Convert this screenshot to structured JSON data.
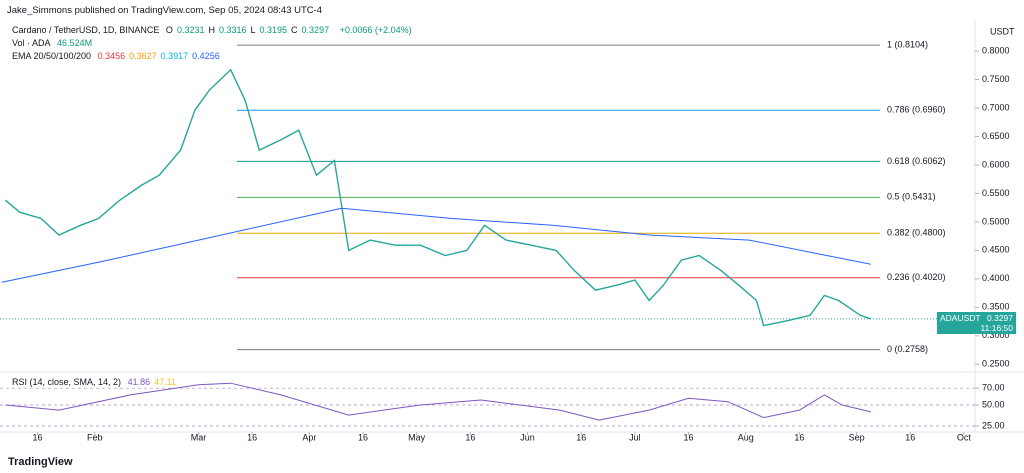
{
  "header": {
    "publisher": "Jake_Simmons published on TradingView.com, Sep 05, 2024 08:43 UTC-4",
    "symbol": "Cardano / TetherUSD, 1D, BINANCE",
    "ohlc": [
      {
        "key": "O",
        "value": "0.3231"
      },
      {
        "key": "H",
        "value": "0.3316"
      },
      {
        "key": "L",
        "value": "0.3195"
      },
      {
        "key": "C",
        "value": "0.3297"
      }
    ],
    "change": "+0.0066 (+2.04%)",
    "volume_label": "Vol · ADA",
    "volume_value": "46.524M",
    "ema_label": "EMA 20/50/100/200",
    "ema_values": [
      {
        "value": "0.3456",
        "color": "#f23645"
      },
      {
        "value": "0.3627",
        "color": "#ff9800"
      },
      {
        "value": "0.3917",
        "color": "#00bcd4"
      },
      {
        "value": "0.4256",
        "color": "#2962ff"
      }
    ],
    "axis_unit": "USDT",
    "countdown": "11:16:50",
    "brand": "TradingView"
  },
  "chart_data": [
    {
      "type": "line",
      "xlim": [
        5.5,
        278.1
      ],
      "ylim": [
        0.24,
        0.8193
      ],
      "yticks": [
        {
          "value": 0.25,
          "label": "0.2500"
        },
        {
          "value": 0.3,
          "label": "0.3000"
        },
        {
          "value": 0.35,
          "label": "0.3500"
        },
        {
          "value": 0.4,
          "label": "0.4000"
        },
        {
          "value": 0.45,
          "label": "0.4500"
        },
        {
          "value": 0.5,
          "label": "0.5000"
        },
        {
          "value": 0.55,
          "label": "0.5500"
        },
        {
          "value": 0.6,
          "label": "0.6000"
        },
        {
          "value": 0.65,
          "label": "0.6500"
        },
        {
          "value": 0.7,
          "label": "0.7000"
        },
        {
          "value": 0.75,
          "label": "0.7500"
        },
        {
          "value": 0.8,
          "label": "0.8000"
        }
      ],
      "xticks": [
        {
          "value": 16,
          "label": "16"
        },
        {
          "value": 32,
          "label": "Feb"
        },
        {
          "value": 61,
          "label": "Mar"
        },
        {
          "value": 76,
          "label": "16"
        },
        {
          "value": 92,
          "label": "Apr"
        },
        {
          "value": 107,
          "label": "16"
        },
        {
          "value": 122,
          "label": "May"
        },
        {
          "value": 137,
          "label": "16"
        },
        {
          "value": 153,
          "label": "Jun"
        },
        {
          "value": 168,
          "label": "16"
        },
        {
          "value": 183,
          "label": "Jul"
        },
        {
          "value": 198,
          "label": "16"
        },
        {
          "value": 214,
          "label": "Aug"
        },
        {
          "value": 229,
          "label": "16"
        },
        {
          "value": 245,
          "label": "Sep"
        },
        {
          "value": 260,
          "label": "16"
        },
        {
          "value": 275,
          "label": "Oct"
        }
      ],
      "series": [
        {
          "name": "ADAUSDT",
          "color": "#26a69a",
          "x": [
            7,
            11,
            17,
            22,
            28,
            33,
            39,
            45,
            50,
            56,
            60,
            64,
            70,
            74,
            78,
            84,
            89,
            94,
            99,
            103,
            109,
            116,
            123,
            130,
            136,
            141,
            147,
            154,
            161,
            166,
            172,
            178,
            183,
            187,
            191,
            196,
            201,
            207,
            212,
            217,
            219,
            226,
            232,
            236,
            240,
            246,
            249
          ],
          "values": [
            0.538,
            0.517,
            0.506,
            0.477,
            0.494,
            0.506,
            0.538,
            0.564,
            0.582,
            0.626,
            0.696,
            0.731,
            0.767,
            0.714,
            0.626,
            0.644,
            0.661,
            0.582,
            0.608,
            0.45,
            0.468,
            0.459,
            0.459,
            0.441,
            0.45,
            0.494,
            0.468,
            0.459,
            0.45,
            0.415,
            0.38,
            0.389,
            0.398,
            0.362,
            0.389,
            0.433,
            0.441,
            0.415,
            0.389,
            0.362,
            0.318,
            0.327,
            0.336,
            0.371,
            0.362,
            0.336,
            0.3297
          ]
        },
        {
          "color": "#2962ff",
          "x": [
            6,
            33,
            61,
            101,
            132,
            160,
            187,
            215,
            249
          ],
          "values": [
            0.394,
            0.429,
            0.468,
            0.524,
            0.506,
            0.494,
            0.477,
            0.468,
            0.4256
          ]
        }
      ],
      "levels": [
        {
          "value": 0.8104,
          "label": "1 (0.8104)",
          "color": "#787b86"
        },
        {
          "value": 0.696,
          "label": "0.786 (0.6960)",
          "color": "#2196f3"
        },
        {
          "value": 0.6062,
          "label": "0.618 (0.6062)",
          "color": "#089981"
        },
        {
          "value": 0.5431,
          "label": "0.5 (0.5431)",
          "color": "#4caf50"
        },
        {
          "value": 0.48,
          "label": "0.382 (0.4800)",
          "color": "#e0a800"
        },
        {
          "value": 0.402,
          "label": "0.236 (0.4020)",
          "color": "#f23645"
        },
        {
          "value": 0.2758,
          "label": "0 (0.2758)",
          "color": "#787b86"
        }
      ]
    },
    {
      "type": "line",
      "title": "RSI (14, close, SMA, 14, 2)",
      "readouts": [
        {
          "value": "41.86",
          "color": "#7e57c2"
        },
        {
          "value": "47.11",
          "color": "#f7c531"
        }
      ],
      "xlim": [
        5.5,
        278.1
      ],
      "ylim": [
        17.9,
        85.7
      ],
      "yticks": [
        {
          "value": 70,
          "label": "70.00"
        },
        {
          "value": 50,
          "label": "50.00"
        },
        {
          "value": 25,
          "label": "25.00"
        }
      ],
      "series": [
        {
          "color": "#7e57c2",
          "x": [
            7,
            22,
            42,
            61,
            70,
            84,
            103,
            123,
            140,
            162,
            173,
            187,
            198,
            209,
            219,
            229,
            236,
            241,
            249
          ],
          "values": [
            50,
            44,
            62,
            74,
            76,
            62,
            38,
            50,
            56,
            44,
            32,
            44,
            58,
            54,
            35,
            44,
            62,
            50,
            41.86
          ]
        }
      ]
    }
  ]
}
